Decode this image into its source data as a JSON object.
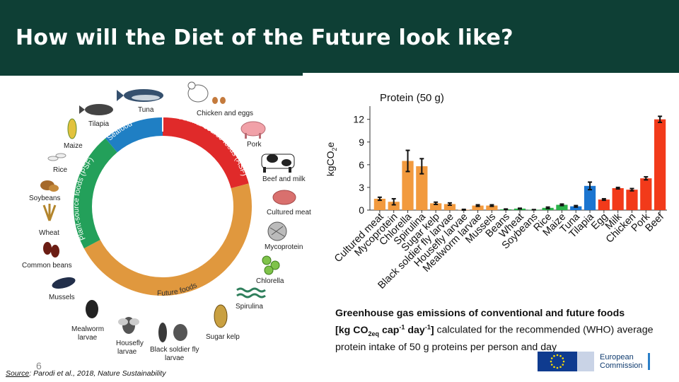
{
  "slide": {
    "title": "How will the Diet of the Future look like?",
    "page_number": "6",
    "source_label": "Source",
    "source_text": ":  Parodi et al., 2018, Nature Sustainability",
    "logo_line1": "European",
    "logo_line2": "Commission"
  },
  "donut": {
    "segments": [
      {
        "label": "Seafood",
        "color": "#1f7fc4"
      },
      {
        "label": "Animal-source foods (ASF)",
        "color": "#e02a2a"
      },
      {
        "label": "Future foods",
        "color": "#e0983e"
      },
      {
        "label": "Plant-source foods (PSF)",
        "color": "#23a05a"
      }
    ],
    "items": [
      "Tuna",
      "Chicken and eggs",
      "Pork",
      "Beef and milk",
      "Cultured meat",
      "Mycoprotein",
      "Chlorella",
      "Spirulina",
      "Sugar kelp",
      "Black soldier fly larvae",
      "Housefly larvae",
      "Mealworm larvae",
      "Mussels",
      "Common beans",
      "Wheat",
      "Soybeans",
      "Rice",
      "Maize",
      "Tilapia"
    ]
  },
  "caption": {
    "bold1": "Greenhouse gas emissions of conventional and future foods",
    "bold2_a": "[kg CO",
    "bold2_sub": "2eq",
    "bold2_b": " cap",
    "bold2_sup1": "-1",
    "bold2_c": " day",
    "bold2_sup2": "-1",
    "bold2_d": "]",
    "normal": " calculated for the recommended (WHO) average protein intake of 50 g proteins per person and day"
  },
  "chart_data": {
    "type": "bar",
    "title": "Protein (50 g)",
    "ylabel": "kgCO2e",
    "ylim": [
      0,
      13
    ],
    "yticks": [
      0,
      3,
      6,
      9,
      12
    ],
    "categories": [
      "Cultured meat",
      "Mycoprotein",
      "Chlorella",
      "Spirulina",
      "Sugar kelp",
      "Black soldier fly larvae",
      "Housefly larvae",
      "Mealworm larvae",
      "Mussels",
      "Beans",
      "Wheat",
      "Soybeans",
      "Rice",
      "Maize",
      "Tuna",
      "Tilapia",
      "Egg",
      "Milk",
      "Chicken",
      "Pork",
      "Beef"
    ],
    "values": [
      1.5,
      1.1,
      6.5,
      5.8,
      0.9,
      0.8,
      0.05,
      0.6,
      0.6,
      0.1,
      0.2,
      0.05,
      0.3,
      0.7,
      0.5,
      3.2,
      1.4,
      2.9,
      2.7,
      4.2,
      12.0
    ],
    "errors": [
      0.2,
      0.4,
      1.4,
      1.0,
      0.15,
      0.15,
      0.05,
      0.1,
      0.1,
      0.05,
      0.05,
      0.02,
      0.1,
      0.1,
      0.1,
      0.5,
      0.1,
      0.1,
      0.15,
      0.2,
      0.4
    ],
    "colors": [
      "#f29a3e",
      "#f29a3e",
      "#f29a3e",
      "#f29a3e",
      "#f29a3e",
      "#f29a3e",
      "#f29a3e",
      "#f29a3e",
      "#f29a3e",
      "#2bb34a",
      "#2bb34a",
      "#2bb34a",
      "#2bb34a",
      "#2bb34a",
      "#1b75d0",
      "#1b75d0",
      "#f23a1a",
      "#f23a1a",
      "#f23a1a",
      "#f23a1a",
      "#f23a1a"
    ]
  }
}
